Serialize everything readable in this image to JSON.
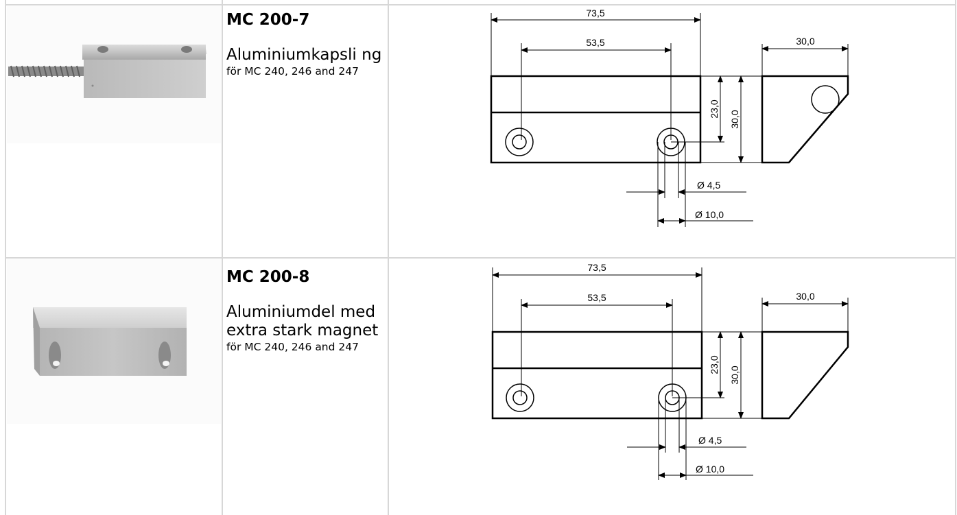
{
  "rows": [
    {
      "model": "MC 200-7",
      "desc_big": "Aluminiumkapsli ng",
      "desc_small": "för MC 240, 246 and 247",
      "image_alt": "Aluminium magnet housing with flexible armoured cable",
      "dims": {
        "length": "73,5",
        "holes": "53,5",
        "width": "30,0",
        "height_inner": "23,0",
        "height": "30,0",
        "hole_small": "Ø 4,5",
        "hole_large": "Ø 10,0"
      }
    },
    {
      "model": "MC 200-8",
      "desc_big": "Aluminiumdel med extra stark magnet",
      "desc_small": "för MC 240, 246 and 247",
      "image_alt": "Aluminium magnet block with two countersunk holes",
      "dims": {
        "length": "73,5",
        "holes": "53,5",
        "width": "30,0",
        "height_inner": "23,0",
        "height": "30,0",
        "hole_small": "Ø 4,5",
        "hole_large": "Ø 10,0"
      }
    }
  ]
}
